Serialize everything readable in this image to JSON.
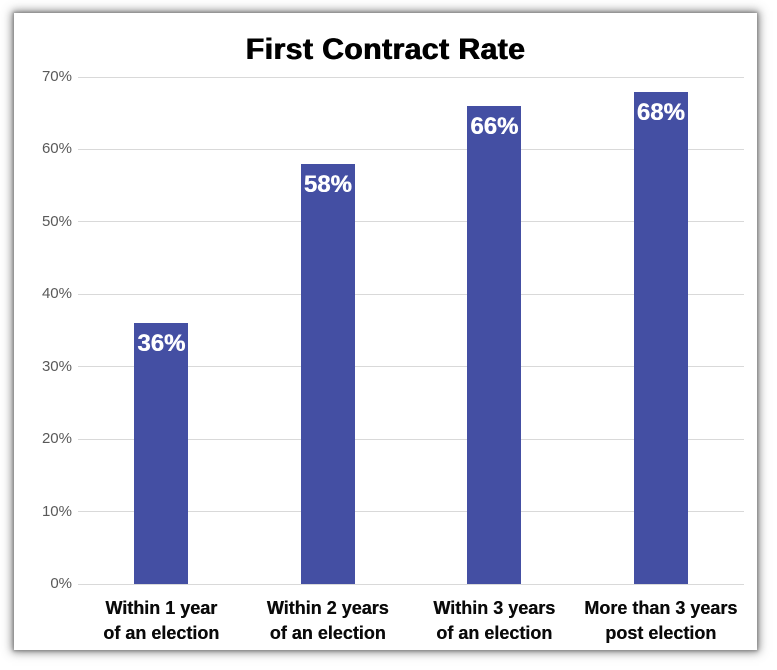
{
  "chart_data": {
    "type": "bar",
    "title": "First Contract Rate",
    "categories": [
      {
        "line1": "Within 1 year",
        "line2": "of an election"
      },
      {
        "line1": "Within 2 years",
        "line2": "of an election"
      },
      {
        "line1": "Within 3 years",
        "line2": "of an election"
      },
      {
        "line1": "More than 3 years",
        "line2": "post election"
      }
    ],
    "values": [
      36,
      58,
      66,
      68
    ],
    "value_labels": [
      "36%",
      "58%",
      "66%",
      "68%"
    ],
    "yticks": [
      "0%",
      "10%",
      "20%",
      "30%",
      "40%",
      "50%",
      "60%",
      "70%"
    ],
    "ytick_values": [
      0,
      10,
      20,
      30,
      40,
      50,
      60,
      70
    ],
    "ylim": [
      0,
      70
    ],
    "grid": true,
    "legend": "none",
    "xlabel": "",
    "ylabel": "",
    "colors": {
      "bar": "#444fa3",
      "value_label": "#ffffff",
      "gridline": "#d9d9d9",
      "ytick_text": "#595959",
      "category_text": "#0a0a0a",
      "title_text": "#000000",
      "frame_background": "#ffffff"
    }
  }
}
